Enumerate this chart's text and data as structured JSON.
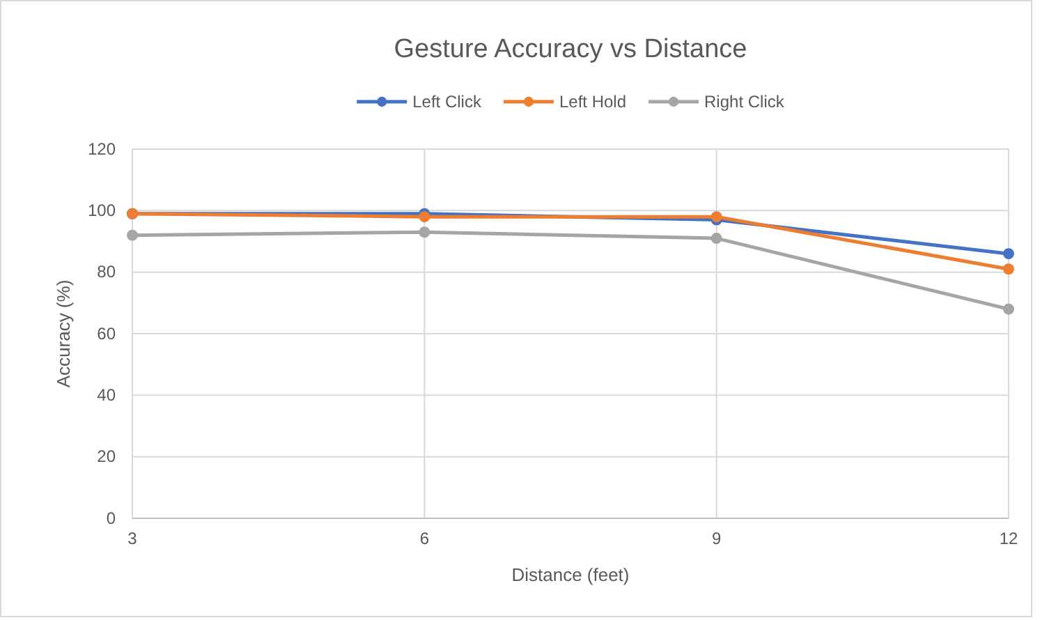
{
  "chart_data": {
    "type": "line",
    "title": "Gesture Accuracy vs Distance",
    "xlabel": "Distance (feet)",
    "ylabel": "Accuracy (%)",
    "x": [
      3,
      6,
      9,
      12
    ],
    "xlim": [
      3,
      12
    ],
    "xticks": [
      3,
      6,
      9,
      12
    ],
    "ylim": [
      0,
      120
    ],
    "yticks": [
      0,
      20,
      40,
      60,
      80,
      100,
      120
    ],
    "grid": true,
    "legend": "top",
    "marker": "circle",
    "line_style": "solid",
    "series": [
      {
        "name": "Left Click",
        "color": "#4472c4",
        "values": [
          99,
          99,
          97,
          86
        ]
      },
      {
        "name": "Left Hold",
        "color": "#ed7d31",
        "values": [
          99,
          98,
          98,
          81
        ]
      },
      {
        "name": "Right Click",
        "color": "#a5a5a5",
        "values": [
          92,
          93,
          91,
          68
        ]
      }
    ]
  }
}
